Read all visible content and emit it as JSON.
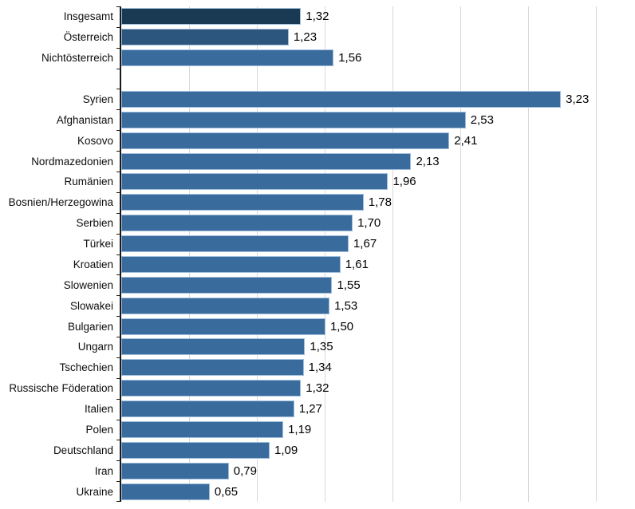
{
  "chart_data": {
    "type": "bar",
    "orientation": "horizontal",
    "title": "",
    "xlabel": "",
    "ylabel": "",
    "value_format": "decimal-comma",
    "legend": "none",
    "axis": {
      "min": 0,
      "max": 3.774,
      "grid_interval": 0.5,
      "grid_values": [
        0.5,
        1.0,
        1.5,
        2.0,
        2.5,
        3.0,
        3.5
      ],
      "grid_on": true
    },
    "colors": {
      "total": "#1a3a54",
      "austria": "#2d567f",
      "default": "#3a6b9d",
      "gridline": "#d9d9d9",
      "axis_line": "#1a1a1a",
      "bar_border": "#9fbedc"
    },
    "groups": [
      {
        "name": "summary",
        "rows": [
          {
            "label": "Insgesamt",
            "value": 1.32,
            "display": "1,32",
            "color_key": "total"
          },
          {
            "label": "Österreich",
            "value": 1.23,
            "display": "1,23",
            "color_key": "austria"
          },
          {
            "label": "Nichtösterreich",
            "value": 1.56,
            "display": "1,56",
            "color_key": "default"
          }
        ]
      },
      {
        "name": "countries",
        "rows": [
          {
            "label": "Syrien",
            "value": 3.23,
            "display": "3,23",
            "color_key": "default"
          },
          {
            "label": "Afghanistan",
            "value": 2.53,
            "display": "2,53",
            "color_key": "default"
          },
          {
            "label": "Kosovo",
            "value": 2.41,
            "display": "2,41",
            "color_key": "default"
          },
          {
            "label": "Nordmazedonien",
            "value": 2.13,
            "display": "2,13",
            "color_key": "default"
          },
          {
            "label": "Rumänien",
            "value": 1.96,
            "display": "1,96",
            "color_key": "default"
          },
          {
            "label": "Bosnien/Herzegowina",
            "value": 1.78,
            "display": "1,78",
            "color_key": "default"
          },
          {
            "label": "Serbien",
            "value": 1.7,
            "display": "1,70",
            "color_key": "default"
          },
          {
            "label": "Türkei",
            "value": 1.67,
            "display": "1,67",
            "color_key": "default"
          },
          {
            "label": "Kroatien",
            "value": 1.61,
            "display": "1,61",
            "color_key": "default"
          },
          {
            "label": "Slowenien",
            "value": 1.55,
            "display": "1,55",
            "color_key": "default"
          },
          {
            "label": "Slowakei",
            "value": 1.53,
            "display": "1,53",
            "color_key": "default"
          },
          {
            "label": "Bulgarien",
            "value": 1.5,
            "display": "1,50",
            "color_key": "default"
          },
          {
            "label": "Ungarn",
            "value": 1.35,
            "display": "1,35",
            "color_key": "default"
          },
          {
            "label": "Tschechien",
            "value": 1.34,
            "display": "1,34",
            "color_key": "default"
          },
          {
            "label": "Russische Föderation",
            "value": 1.32,
            "display": "1,32",
            "color_key": "default"
          },
          {
            "label": "Italien",
            "value": 1.27,
            "display": "1,27",
            "color_key": "default"
          },
          {
            "label": "Polen",
            "value": 1.19,
            "display": "1,19",
            "color_key": "default"
          },
          {
            "label": "Deutschland",
            "value": 1.09,
            "display": "1,09",
            "color_key": "default"
          },
          {
            "label": "Iran",
            "value": 0.79,
            "display": "0,79",
            "color_key": "default"
          },
          {
            "label": "Ukraine",
            "value": 0.65,
            "display": "0,65",
            "color_key": "default"
          }
        ]
      }
    ]
  }
}
